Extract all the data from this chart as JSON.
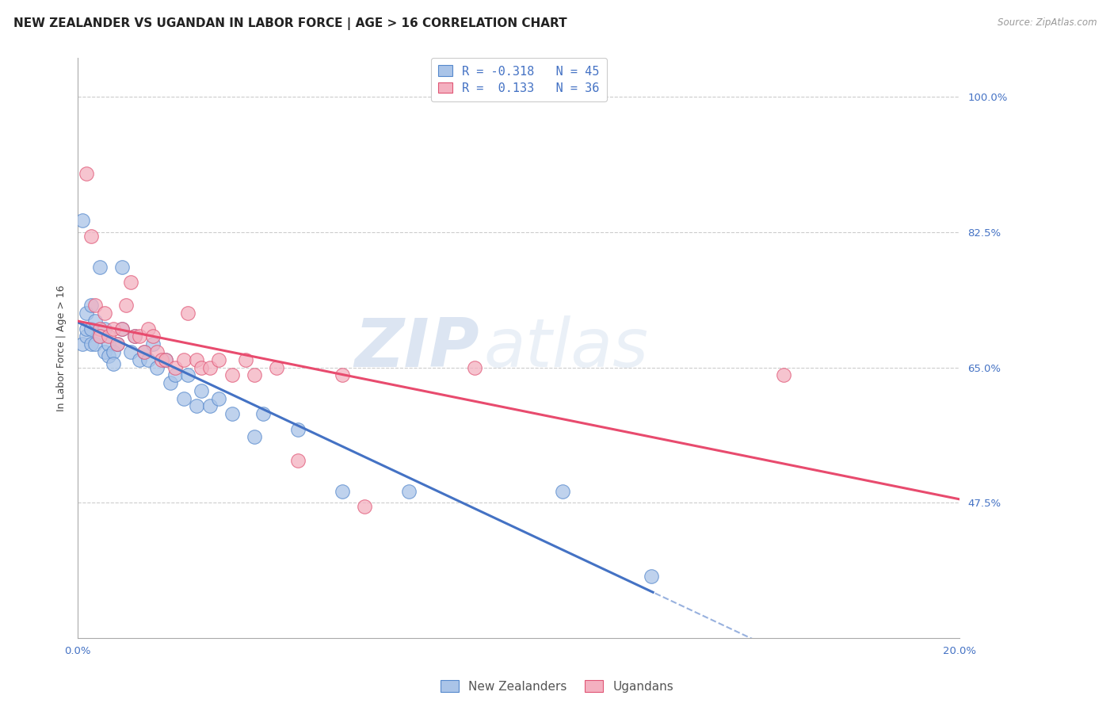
{
  "title": "NEW ZEALANDER VS UGANDAN IN LABOR FORCE | AGE > 16 CORRELATION CHART",
  "source": "Source: ZipAtlas.com",
  "ylabel": "In Labor Force | Age > 16",
  "x_min": 0.0,
  "x_max": 0.2,
  "y_min": 0.3,
  "y_max": 1.05,
  "x_ticks": [
    0.0,
    0.04,
    0.08,
    0.12,
    0.16,
    0.2
  ],
  "x_tick_labels": [
    "0.0%",
    "",
    "",
    "",
    "",
    "20.0%"
  ],
  "y_ticks": [
    0.475,
    0.65,
    0.825,
    1.0
  ],
  "y_tick_labels": [
    "47.5%",
    "65.0%",
    "82.5%",
    "100.0%"
  ],
  "grid_color": "#cccccc",
  "background_color": "#ffffff",
  "nz_color": "#aac4e8",
  "ug_color": "#f4b0c0",
  "nz_edge_color": "#5588cc",
  "ug_edge_color": "#e05575",
  "nz_line_color": "#4472c4",
  "ug_line_color": "#e84b6e",
  "nz_R": -0.318,
  "nz_N": 45,
  "ug_R": 0.133,
  "ug_N": 36,
  "legend_label_nz": "New Zealanders",
  "legend_label_ug": "Ugandans",
  "nz_scatter_x": [
    0.001,
    0.001,
    0.002,
    0.002,
    0.002,
    0.003,
    0.003,
    0.003,
    0.004,
    0.004,
    0.005,
    0.005,
    0.006,
    0.006,
    0.007,
    0.007,
    0.008,
    0.008,
    0.009,
    0.01,
    0.01,
    0.012,
    0.013,
    0.014,
    0.015,
    0.016,
    0.017,
    0.018,
    0.02,
    0.021,
    0.022,
    0.024,
    0.025,
    0.027,
    0.028,
    0.03,
    0.032,
    0.035,
    0.04,
    0.042,
    0.05,
    0.06,
    0.075,
    0.11,
    0.13
  ],
  "nz_scatter_y": [
    0.68,
    0.84,
    0.69,
    0.7,
    0.72,
    0.73,
    0.7,
    0.68,
    0.71,
    0.68,
    0.78,
    0.69,
    0.7,
    0.67,
    0.68,
    0.665,
    0.67,
    0.655,
    0.68,
    0.78,
    0.7,
    0.67,
    0.69,
    0.66,
    0.67,
    0.66,
    0.68,
    0.65,
    0.66,
    0.63,
    0.64,
    0.61,
    0.64,
    0.6,
    0.62,
    0.6,
    0.61,
    0.59,
    0.56,
    0.59,
    0.57,
    0.49,
    0.49,
    0.49,
    0.38
  ],
  "ug_scatter_x": [
    0.002,
    0.003,
    0.004,
    0.005,
    0.005,
    0.006,
    0.007,
    0.008,
    0.009,
    0.01,
    0.011,
    0.012,
    0.013,
    0.014,
    0.015,
    0.016,
    0.017,
    0.018,
    0.019,
    0.02,
    0.022,
    0.024,
    0.025,
    0.027,
    0.028,
    0.03,
    0.032,
    0.035,
    0.038,
    0.04,
    0.045,
    0.05,
    0.06,
    0.065,
    0.09,
    0.16
  ],
  "ug_scatter_y": [
    0.9,
    0.82,
    0.73,
    0.7,
    0.69,
    0.72,
    0.69,
    0.7,
    0.68,
    0.7,
    0.73,
    0.76,
    0.69,
    0.69,
    0.67,
    0.7,
    0.69,
    0.67,
    0.66,
    0.66,
    0.65,
    0.66,
    0.72,
    0.66,
    0.65,
    0.65,
    0.66,
    0.64,
    0.66,
    0.64,
    0.65,
    0.53,
    0.64,
    0.47,
    0.65,
    0.64
  ],
  "watermark_zip": "ZIP",
  "watermark_atlas": "atlas",
  "title_fontsize": 11,
  "axis_label_fontsize": 9,
  "tick_fontsize": 9.5,
  "legend_fontsize": 11
}
